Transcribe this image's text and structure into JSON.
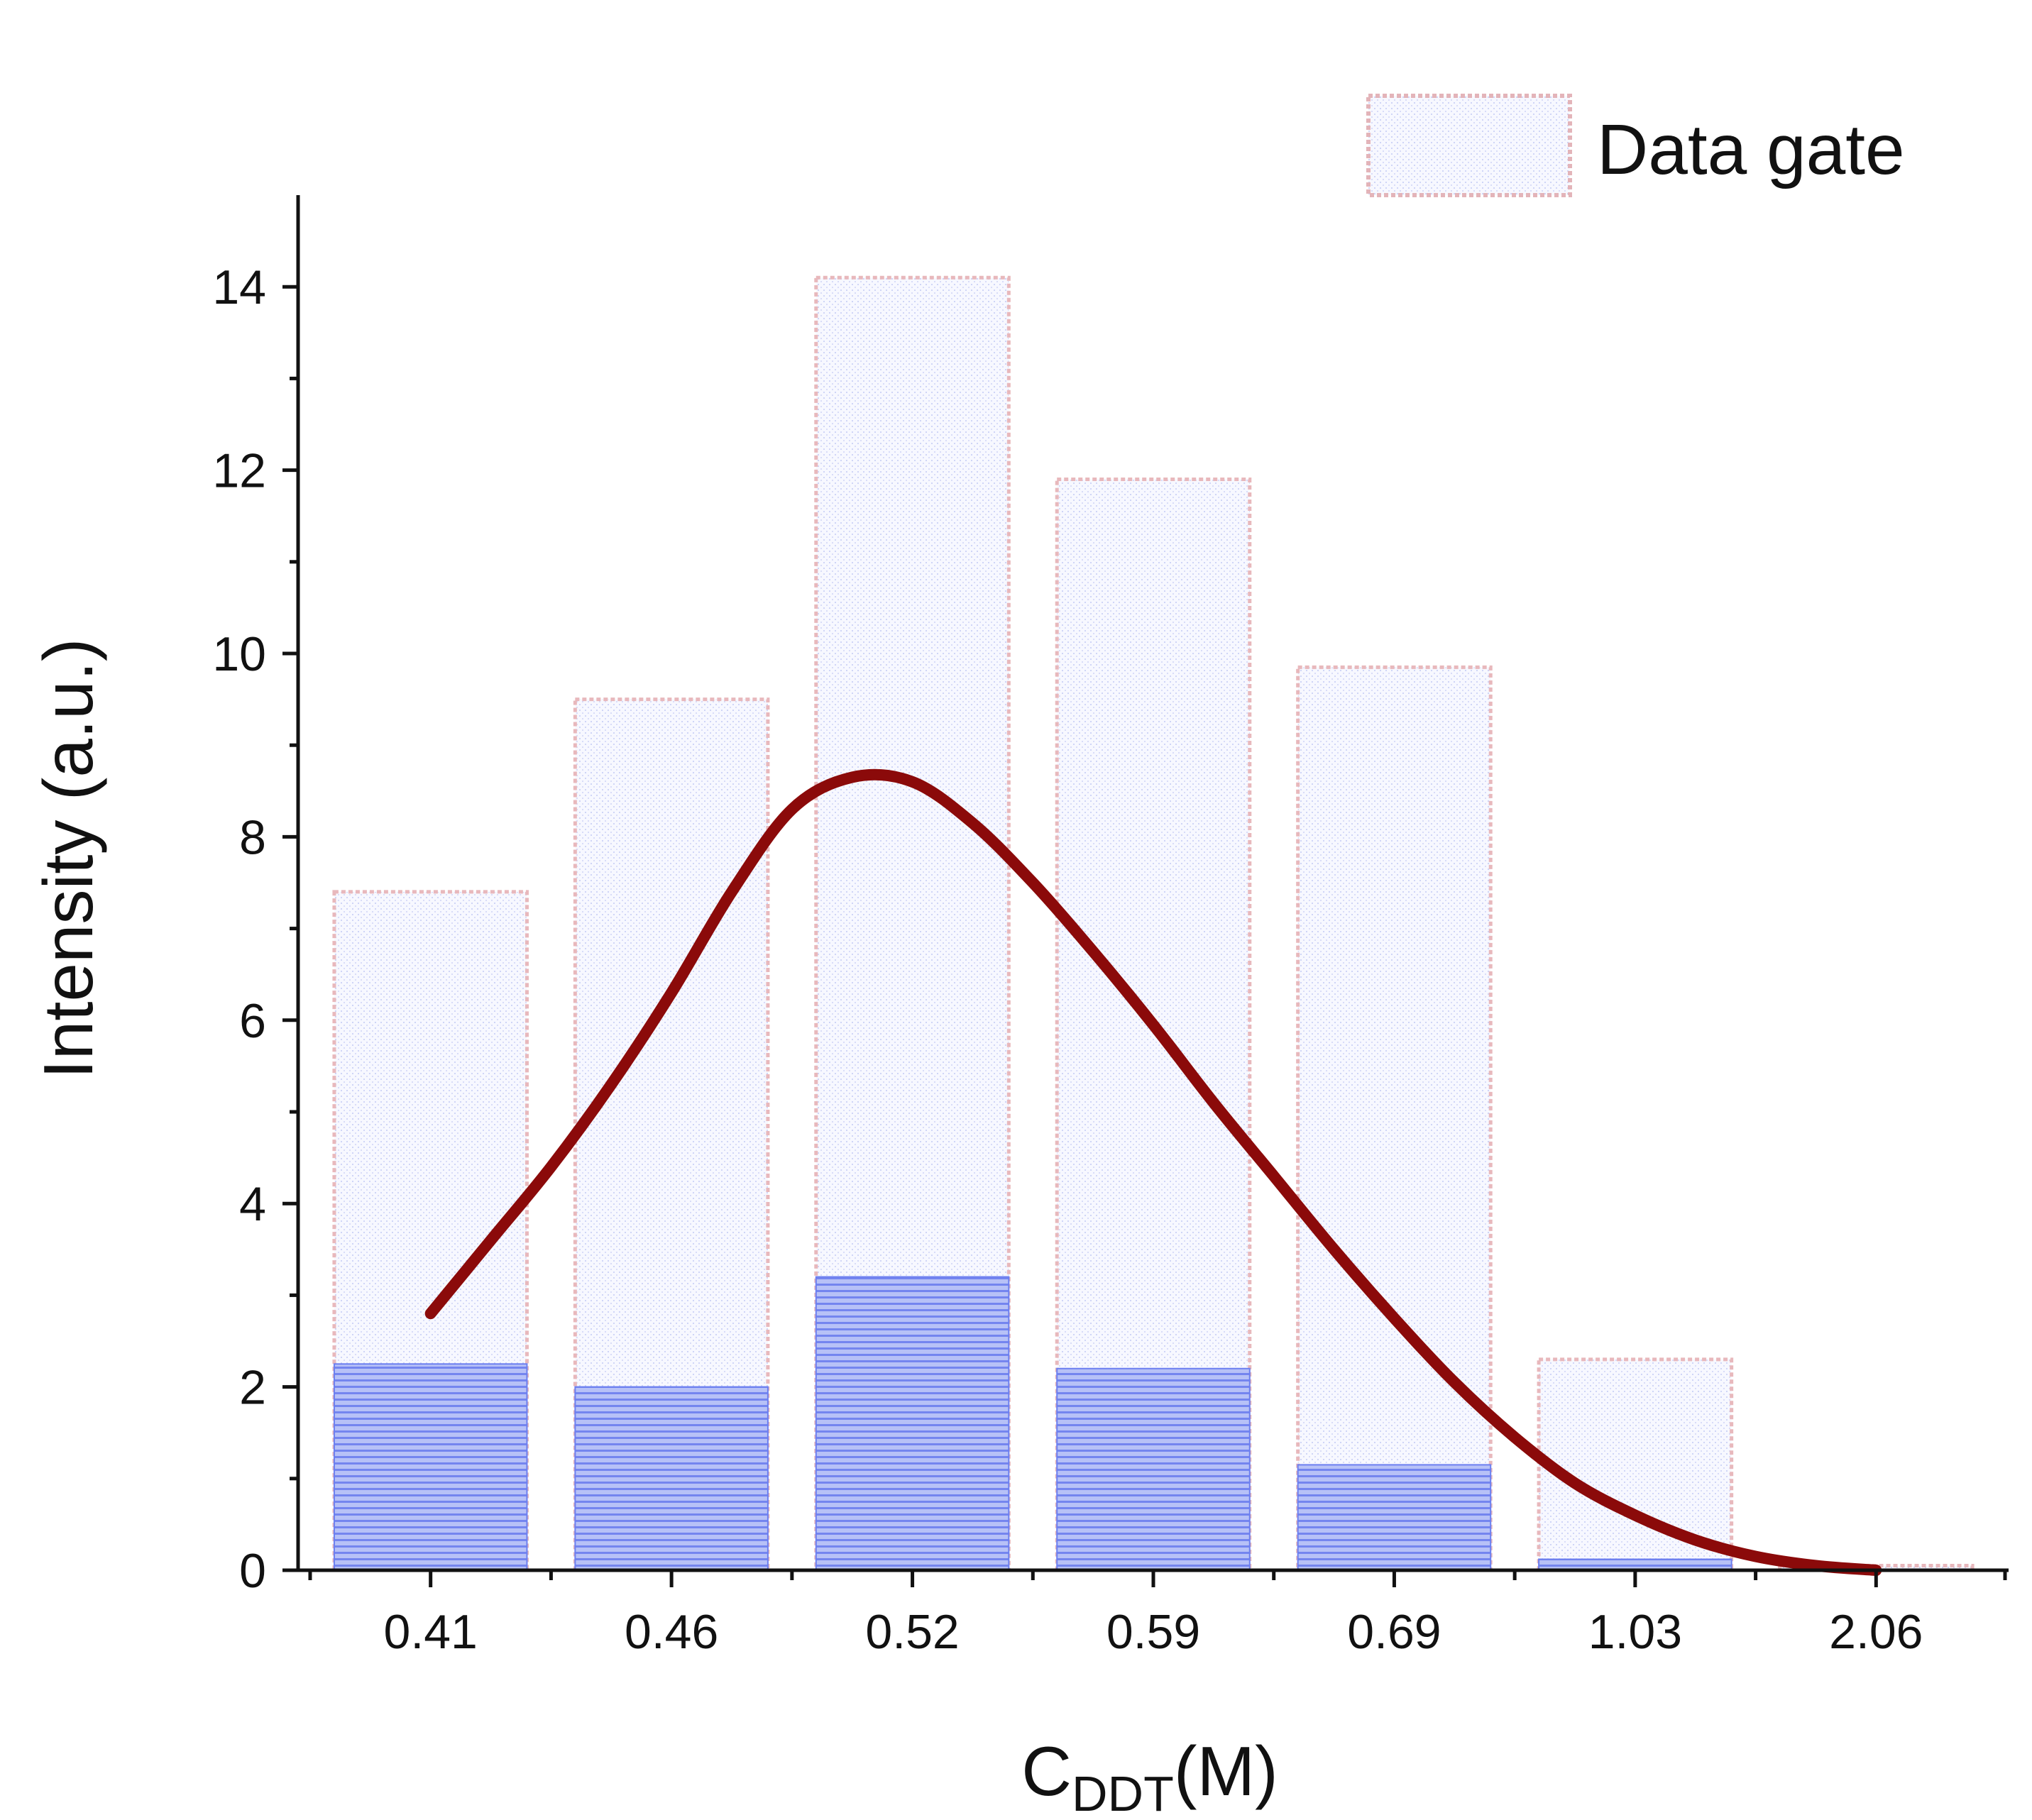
{
  "chart_data": {
    "type": "bar",
    "title": "",
    "xlabel": "C",
    "xlabel_subscript": "DDT",
    "xlabel_suffix": "(M)",
    "ylabel": "Intensity (a.u.)",
    "ylim": [
      0,
      15
    ],
    "yticks": [
      "0",
      "2",
      "4",
      "6",
      "8",
      "10",
      "12",
      "14"
    ],
    "categories": [
      "0.41",
      "0.46",
      "0.52",
      "0.59",
      "0.69",
      "1.03",
      "2.06"
    ],
    "series": [
      {
        "name": "Data gate",
        "values": [
          7.4,
          9.5,
          14.1,
          11.9,
          9.85,
          2.3,
          0.05
        ],
        "style": "dotted-outline"
      },
      {
        "name": "",
        "values": [
          2.25,
          2.0,
          3.2,
          2.2,
          1.15,
          0.12,
          0.0
        ],
        "style": "hatched-fill"
      }
    ],
    "fit_curve": {
      "name": "",
      "x_category_position": [
        0,
        0.25,
        0.5,
        0.75,
        1.0,
        1.25,
        1.5,
        1.75,
        2.0,
        2.25,
        2.5,
        2.75,
        3.0,
        3.25,
        3.5,
        3.75,
        4.0,
        4.25,
        4.5,
        4.75,
        5.0,
        5.25,
        5.5,
        5.75,
        6.0
      ],
      "y": [
        2.8,
        3.6,
        4.4,
        5.3,
        6.3,
        7.4,
        8.3,
        8.65,
        8.6,
        8.15,
        7.5,
        6.75,
        5.95,
        5.1,
        4.3,
        3.5,
        2.75,
        2.05,
        1.45,
        0.95,
        0.6,
        0.33,
        0.15,
        0.05,
        0.0
      ]
    },
    "legend": {
      "position": "top-right",
      "label": "Data gate"
    },
    "grid": false,
    "colors": {
      "gate_outline": "#e8b8bc",
      "gate_fill": "#eef0fc",
      "hatch_fill": "#a9b5f5",
      "hatch_line": "#6c7ff0",
      "curve": "#8b0a0a",
      "axis": "#111111"
    }
  }
}
